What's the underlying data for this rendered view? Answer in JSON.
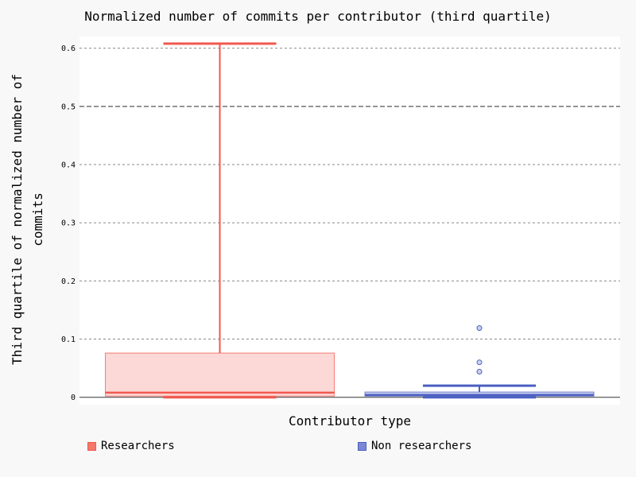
{
  "chart_data": {
    "type": "box",
    "title": "Normalized number of commits per contributor (third quartile)",
    "xlabel": "Contributor type",
    "ylabel_lines": [
      "Third quartile of normalized number of",
      "commits"
    ],
    "yticks": [
      0,
      0.1,
      0.2,
      0.3,
      0.4,
      0.5,
      0.6
    ],
    "ytick_labels": [
      "0",
      "0.1",
      "0.2",
      "0.3",
      "0.4",
      "0.5",
      "0.6"
    ],
    "ylim": [
      -0.013,
      0.62
    ],
    "grid": true,
    "legend_position": "bottom",
    "series": [
      {
        "name": "Researchers",
        "color": "#f0594f",
        "fill": "#fcd8d6",
        "swatch": "#f6766c",
        "min": 0.0,
        "q1": 0.002,
        "median": 0.008,
        "q3": 0.076,
        "max": 0.608,
        "outliers": []
      },
      {
        "name": "Non researchers",
        "color": "#4a5fc1",
        "fill": "#cdd3ef",
        "swatch": "#7a88d4",
        "min": 0.0,
        "q1": 0.002,
        "median": 0.004,
        "q3": 0.009,
        "max": 0.02,
        "outliers": [
          0.044,
          0.06,
          0.119
        ]
      }
    ]
  }
}
